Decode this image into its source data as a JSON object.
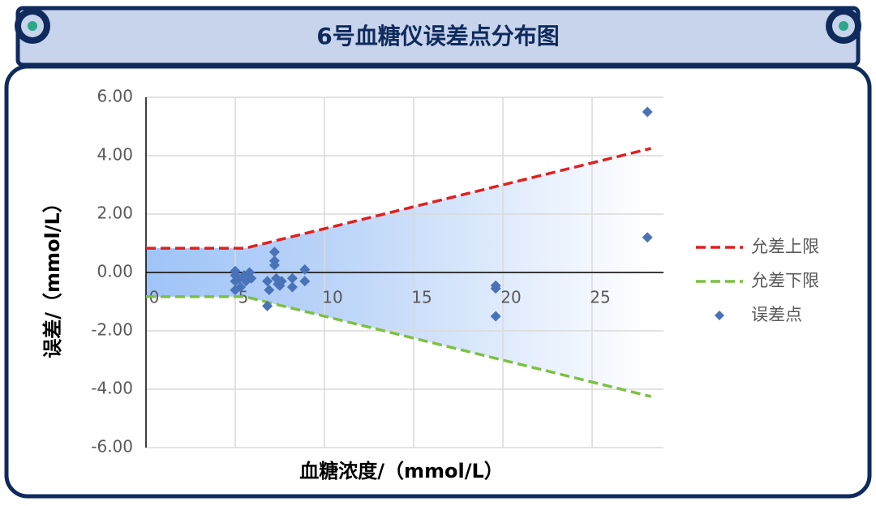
{
  "chart_data": {
    "type": "scatter",
    "title": "6号血糖仪误差点分布图",
    "xlabel": "血糖浓度/（mmol/L）",
    "ylabel": "误差/（mmol/L）",
    "xlim": [
      0,
      29
    ],
    "xticks": [
      0,
      5,
      10,
      15,
      20,
      25
    ],
    "ylim": [
      -6,
      6
    ],
    "yticks": [
      {
        "value": -6,
        "label": "-6.00"
      },
      {
        "value": -4,
        "label": "-4.00"
      },
      {
        "value": -2,
        "label": "-2.00"
      },
      {
        "value": 0,
        "label": "0.00"
      },
      {
        "value": 2,
        "label": "2.00"
      },
      {
        "value": 4,
        "label": "4.00"
      },
      {
        "value": 6,
        "label": "6.00"
      }
    ],
    "grid": true,
    "legend": "right",
    "series": [
      {
        "name": "允差上限",
        "type": "line",
        "color": "#e02020",
        "x": [
          0,
          5.55,
          28.3
        ],
        "values": [
          0.83,
          0.83,
          4.25
        ]
      },
      {
        "name": "允差下限",
        "type": "line",
        "color": "#7cc142",
        "x": [
          0,
          5.55,
          28.3
        ],
        "values": [
          -0.83,
          -0.83,
          -4.25
        ]
      },
      {
        "name": "误差点",
        "type": "scatter",
        "color": "#4a72b8",
        "x": [
          5,
          5,
          5,
          5,
          5.2,
          5.3,
          5.5,
          5.6,
          5.8,
          5.9,
          6.8,
          6.8,
          6.9,
          7.2,
          7.2,
          7.2,
          7.3,
          7.4,
          7.5,
          7.6,
          8.2,
          8.2,
          8.9,
          8.9,
          19.6,
          19.6,
          19.6,
          28.1,
          28.1
        ],
        "values": [
          0.05,
          -0.1,
          -0.3,
          -0.6,
          -0.2,
          -0.5,
          -0.1,
          -0.3,
          0.0,
          -0.2,
          -1.15,
          -0.3,
          -0.6,
          0.7,
          0.4,
          0.25,
          -0.2,
          -0.4,
          -0.45,
          -0.3,
          -0.2,
          -0.5,
          0.1,
          -0.3,
          -0.45,
          -0.55,
          -1.5,
          5.5,
          1.2
        ]
      }
    ]
  }
}
